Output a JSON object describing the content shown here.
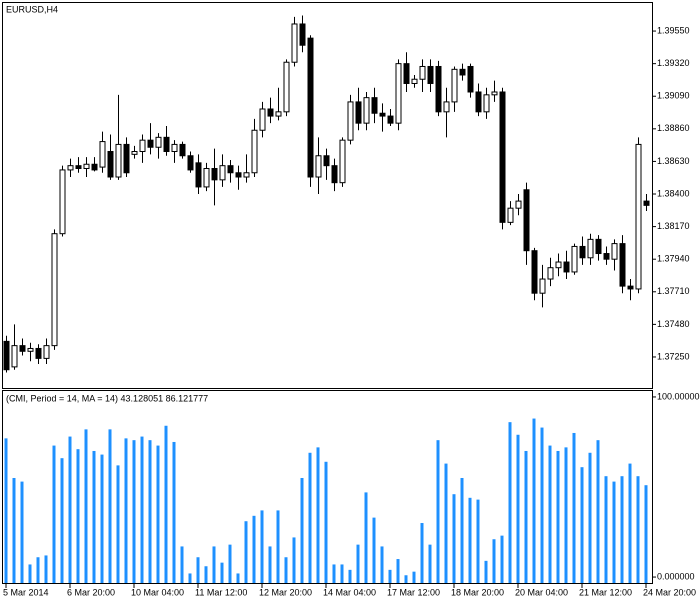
{
  "chart_data": [
    {
      "type": "candlestick",
      "title": "EURUSD,H4",
      "open": [
        1.3736,
        1.3718,
        1.3733,
        1.3729,
        1.3731,
        1.3724,
        1.3733,
        1.3812,
        1.3857,
        1.386,
        1.3858,
        1.3861,
        1.3859,
        1.387,
        1.3852,
        1.3875,
        1.3868,
        1.387,
        1.3878,
        1.3873,
        1.388,
        1.387,
        1.3875,
        1.3867,
        1.3862,
        1.3845,
        1.3858,
        1.385,
        1.386,
        1.3855,
        1.3852,
        1.3855,
        1.3885,
        1.39,
        1.3895,
        1.3898,
        1.3933,
        1.396,
        1.395,
        1.3852,
        1.3867,
        1.386,
        1.3848,
        1.3878,
        1.3905,
        1.389,
        1.3908,
        1.3897,
        1.3895,
        1.389,
        1.3932,
        1.3918,
        1.3921,
        1.393,
        1.393,
        1.3898,
        1.3905,
        1.3928,
        1.393,
        1.3912,
        1.3898,
        1.391,
        1.3912,
        1.382,
        1.383,
        1.3843,
        1.38,
        1.377,
        1.378,
        1.3788,
        1.3792,
        1.3785,
        1.3803,
        1.3795,
        1.3808,
        1.3798,
        1.3794,
        1.3805,
        1.3775,
        1.3773,
        1.3835
      ],
      "high": [
        1.374,
        1.3748,
        1.3738,
        1.3735,
        1.3734,
        1.3738,
        1.3815,
        1.386,
        1.3865,
        1.3866,
        1.3866,
        1.3866,
        1.3884,
        1.3882,
        1.391,
        1.388,
        1.3874,
        1.3882,
        1.389,
        1.3883,
        1.3888,
        1.3878,
        1.3877,
        1.387,
        1.3868,
        1.3862,
        1.3872,
        1.3868,
        1.3864,
        1.386,
        1.3868,
        1.3893,
        1.3905,
        1.3908,
        1.3915,
        1.3935,
        1.3965,
        1.3966,
        1.3952,
        1.388,
        1.3872,
        1.3865,
        1.388,
        1.391,
        1.3915,
        1.3912,
        1.3915,
        1.3904,
        1.39,
        1.3935,
        1.394,
        1.3924,
        1.3935,
        1.3935,
        1.3934,
        1.3915,
        1.393,
        1.3932,
        1.3932,
        1.3918,
        1.3915,
        1.392,
        1.3915,
        1.3835,
        1.384,
        1.3848,
        1.3802,
        1.379,
        1.3795,
        1.3798,
        1.38,
        1.3805,
        1.381,
        1.3812,
        1.3811,
        1.3803,
        1.3808,
        1.3811,
        1.378,
        1.388,
        1.384
      ],
      "low": [
        1.3714,
        1.3716,
        1.3726,
        1.3722,
        1.372,
        1.372,
        1.373,
        1.381,
        1.3852,
        1.3855,
        1.3852,
        1.3856,
        1.3855,
        1.385,
        1.385,
        1.3852,
        1.3865,
        1.3862,
        1.3868,
        1.3865,
        1.3867,
        1.3862,
        1.3865,
        1.3855,
        1.384,
        1.3842,
        1.3832,
        1.3845,
        1.3848,
        1.3843,
        1.3848,
        1.3852,
        1.388,
        1.389,
        1.3892,
        1.3895,
        1.393,
        1.394,
        1.3845,
        1.384,
        1.385,
        1.3842,
        1.3845,
        1.3875,
        1.3885,
        1.3885,
        1.389,
        1.3884,
        1.3888,
        1.3885,
        1.3912,
        1.3915,
        1.3912,
        1.3912,
        1.3895,
        1.388,
        1.3898,
        1.392,
        1.3908,
        1.3895,
        1.3893,
        1.3905,
        1.3815,
        1.3818,
        1.3825,
        1.379,
        1.3765,
        1.376,
        1.3775,
        1.3782,
        1.378,
        1.3783,
        1.379,
        1.379,
        1.3793,
        1.379,
        1.3786,
        1.377,
        1.3765,
        1.377,
        1.3828
      ],
      "close": [
        1.3716,
        1.3733,
        1.3729,
        1.3731,
        1.3724,
        1.3733,
        1.3812,
        1.3857,
        1.386,
        1.3858,
        1.3861,
        1.3857,
        1.3877,
        1.3852,
        1.3875,
        1.3855,
        1.387,
        1.3878,
        1.3873,
        1.388,
        1.387,
        1.3875,
        1.3867,
        1.3857,
        1.3845,
        1.3858,
        1.385,
        1.386,
        1.3855,
        1.3852,
        1.3855,
        1.3885,
        1.39,
        1.3895,
        1.3898,
        1.3933,
        1.396,
        1.3945,
        1.3852,
        1.3867,
        1.386,
        1.3848,
        1.3878,
        1.3905,
        1.389,
        1.3908,
        1.3897,
        1.3895,
        1.389,
        1.3932,
        1.3918,
        1.3921,
        1.393,
        1.3918,
        1.3898,
        1.3905,
        1.3928,
        1.3924,
        1.3912,
        1.3898,
        1.391,
        1.3912,
        1.382,
        1.383,
        1.3835,
        1.38,
        1.377,
        1.378,
        1.3788,
        1.3792,
        1.3785,
        1.3803,
        1.3795,
        1.3808,
        1.3798,
        1.3794,
        1.3805,
        1.3775,
        1.3773,
        1.3875,
        1.3832
      ],
      "up_color": "#ffffff",
      "down_color": "#000000",
      "outline_color": "#000000",
      "ylim": [
        1.37031,
        1.39748
      ],
      "yticks": [
        {
          "value": 1.3955,
          "label": "1.39550"
        },
        {
          "value": 1.3932,
          "label": "1.39320"
        },
        {
          "value": 1.3909,
          "label": "1.39090"
        },
        {
          "value": 1.3886,
          "label": "1.38860"
        },
        {
          "value": 1.3863,
          "label": "1.38630"
        },
        {
          "value": 1.384,
          "label": "1.38400"
        },
        {
          "value": 1.3817,
          "label": "1.38170"
        },
        {
          "value": 1.3794,
          "label": "1.37940"
        },
        {
          "value": 1.3771,
          "label": "1.37710"
        },
        {
          "value": 1.3748,
          "label": "1.37480"
        },
        {
          "value": 1.3725,
          "label": "1.37250"
        }
      ]
    },
    {
      "type": "bar",
      "title": "(CMI, Period = 14, MA = 14) 43.128051 86.121777",
      "values": [
        77,
        55,
        53,
        7,
        11,
        12,
        73,
        66,
        78,
        71,
        82,
        70,
        68,
        82,
        62,
        77,
        76,
        78,
        76,
        73,
        84,
        75,
        17,
        2,
        11,
        6,
        17,
        8,
        18,
        2,
        31,
        34,
        37,
        17,
        37,
        11,
        22,
        55,
        69,
        72,
        64,
        7,
        7,
        4,
        18,
        47,
        33,
        17,
        4,
        10,
        1,
        3,
        30,
        18,
        76,
        63,
        46,
        55,
        44,
        43,
        9,
        21,
        23,
        86,
        79,
        70,
        88,
        83,
        73,
        70,
        72,
        80,
        61,
        69,
        76,
        56,
        53,
        56,
        63,
        56,
        51
      ],
      "color": "#1e90ff",
      "ylim": [
        -3.3,
        103.3
      ],
      "yticks": [
        {
          "value": 100,
          "label": "100.00000"
        },
        {
          "value": 0,
          "label": "0.000000"
        }
      ],
      "xticks": [
        {
          "value": 0,
          "label": "5 Mar 2014"
        },
        {
          "value": 8,
          "label": "6 Mar 20:00"
        },
        {
          "value": 16,
          "label": "10 Mar 04:00"
        },
        {
          "value": 24,
          "label": "11 Mar 12:00"
        },
        {
          "value": 32,
          "label": "12 Mar 20:00"
        },
        {
          "value": 40,
          "label": "14 Mar 04:00"
        },
        {
          "value": 48,
          "label": "17 Mar 12:00"
        },
        {
          "value": 56,
          "label": "18 Mar 20:00"
        },
        {
          "value": 64,
          "label": "20 Mar 04:00"
        },
        {
          "value": 72,
          "label": "21 Mar 12:00"
        },
        {
          "value": 80,
          "label": "24 Mar 20:00"
        }
      ]
    }
  ]
}
